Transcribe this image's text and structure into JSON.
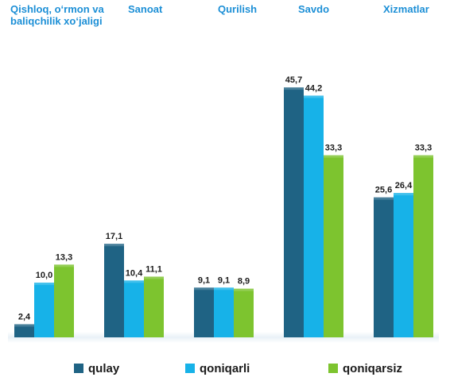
{
  "colors": {
    "qulay": "#1f6384",
    "qoniqarli": "#17b2e8",
    "qoniqarsiz": "#7dc42f",
    "category_label": "#1c8fd6",
    "floor": "#dfe9f1"
  },
  "chart_data": {
    "type": "bar",
    "categories": [
      "Qishloq, o‘rmon va baliqchilik xo‘jaligi",
      "Sanoat",
      "Qurilish",
      "Savdo",
      "Xizmatlar"
    ],
    "category_label_lines": [
      [
        "Qishloq, o‘rmon va",
        "baliqchilik xo‘jaligi"
      ],
      [
        "Sanoat"
      ],
      [
        "Qurilish"
      ],
      [
        "Savdo"
      ],
      [
        "Xizmatlar"
      ]
    ],
    "series": [
      {
        "name": "qulay",
        "values": [
          2.4,
          17.1,
          9.1,
          45.7,
          25.6
        ],
        "labels": [
          "2,4",
          "17,1",
          "9,1",
          "45,7",
          "25,6"
        ]
      },
      {
        "name": "qoniqarli",
        "values": [
          10.0,
          10.4,
          9.1,
          44.2,
          26.4
        ],
        "labels": [
          "10,0",
          "10,4",
          "9,1",
          "44,2",
          "26,4"
        ]
      },
      {
        "name": "qoniqarsiz",
        "values": [
          13.3,
          11.1,
          8.9,
          33.3,
          33.3
        ],
        "labels": [
          "13,3",
          "11,1",
          "8,9",
          "33,3",
          "33,3"
        ]
      }
    ],
    "legend": {
      "position": "bottom",
      "items": [
        "qulay",
        "qoniqarli",
        "qoniqarsiz"
      ]
    },
    "grid": false,
    "ylim": [
      0,
      50
    ]
  }
}
